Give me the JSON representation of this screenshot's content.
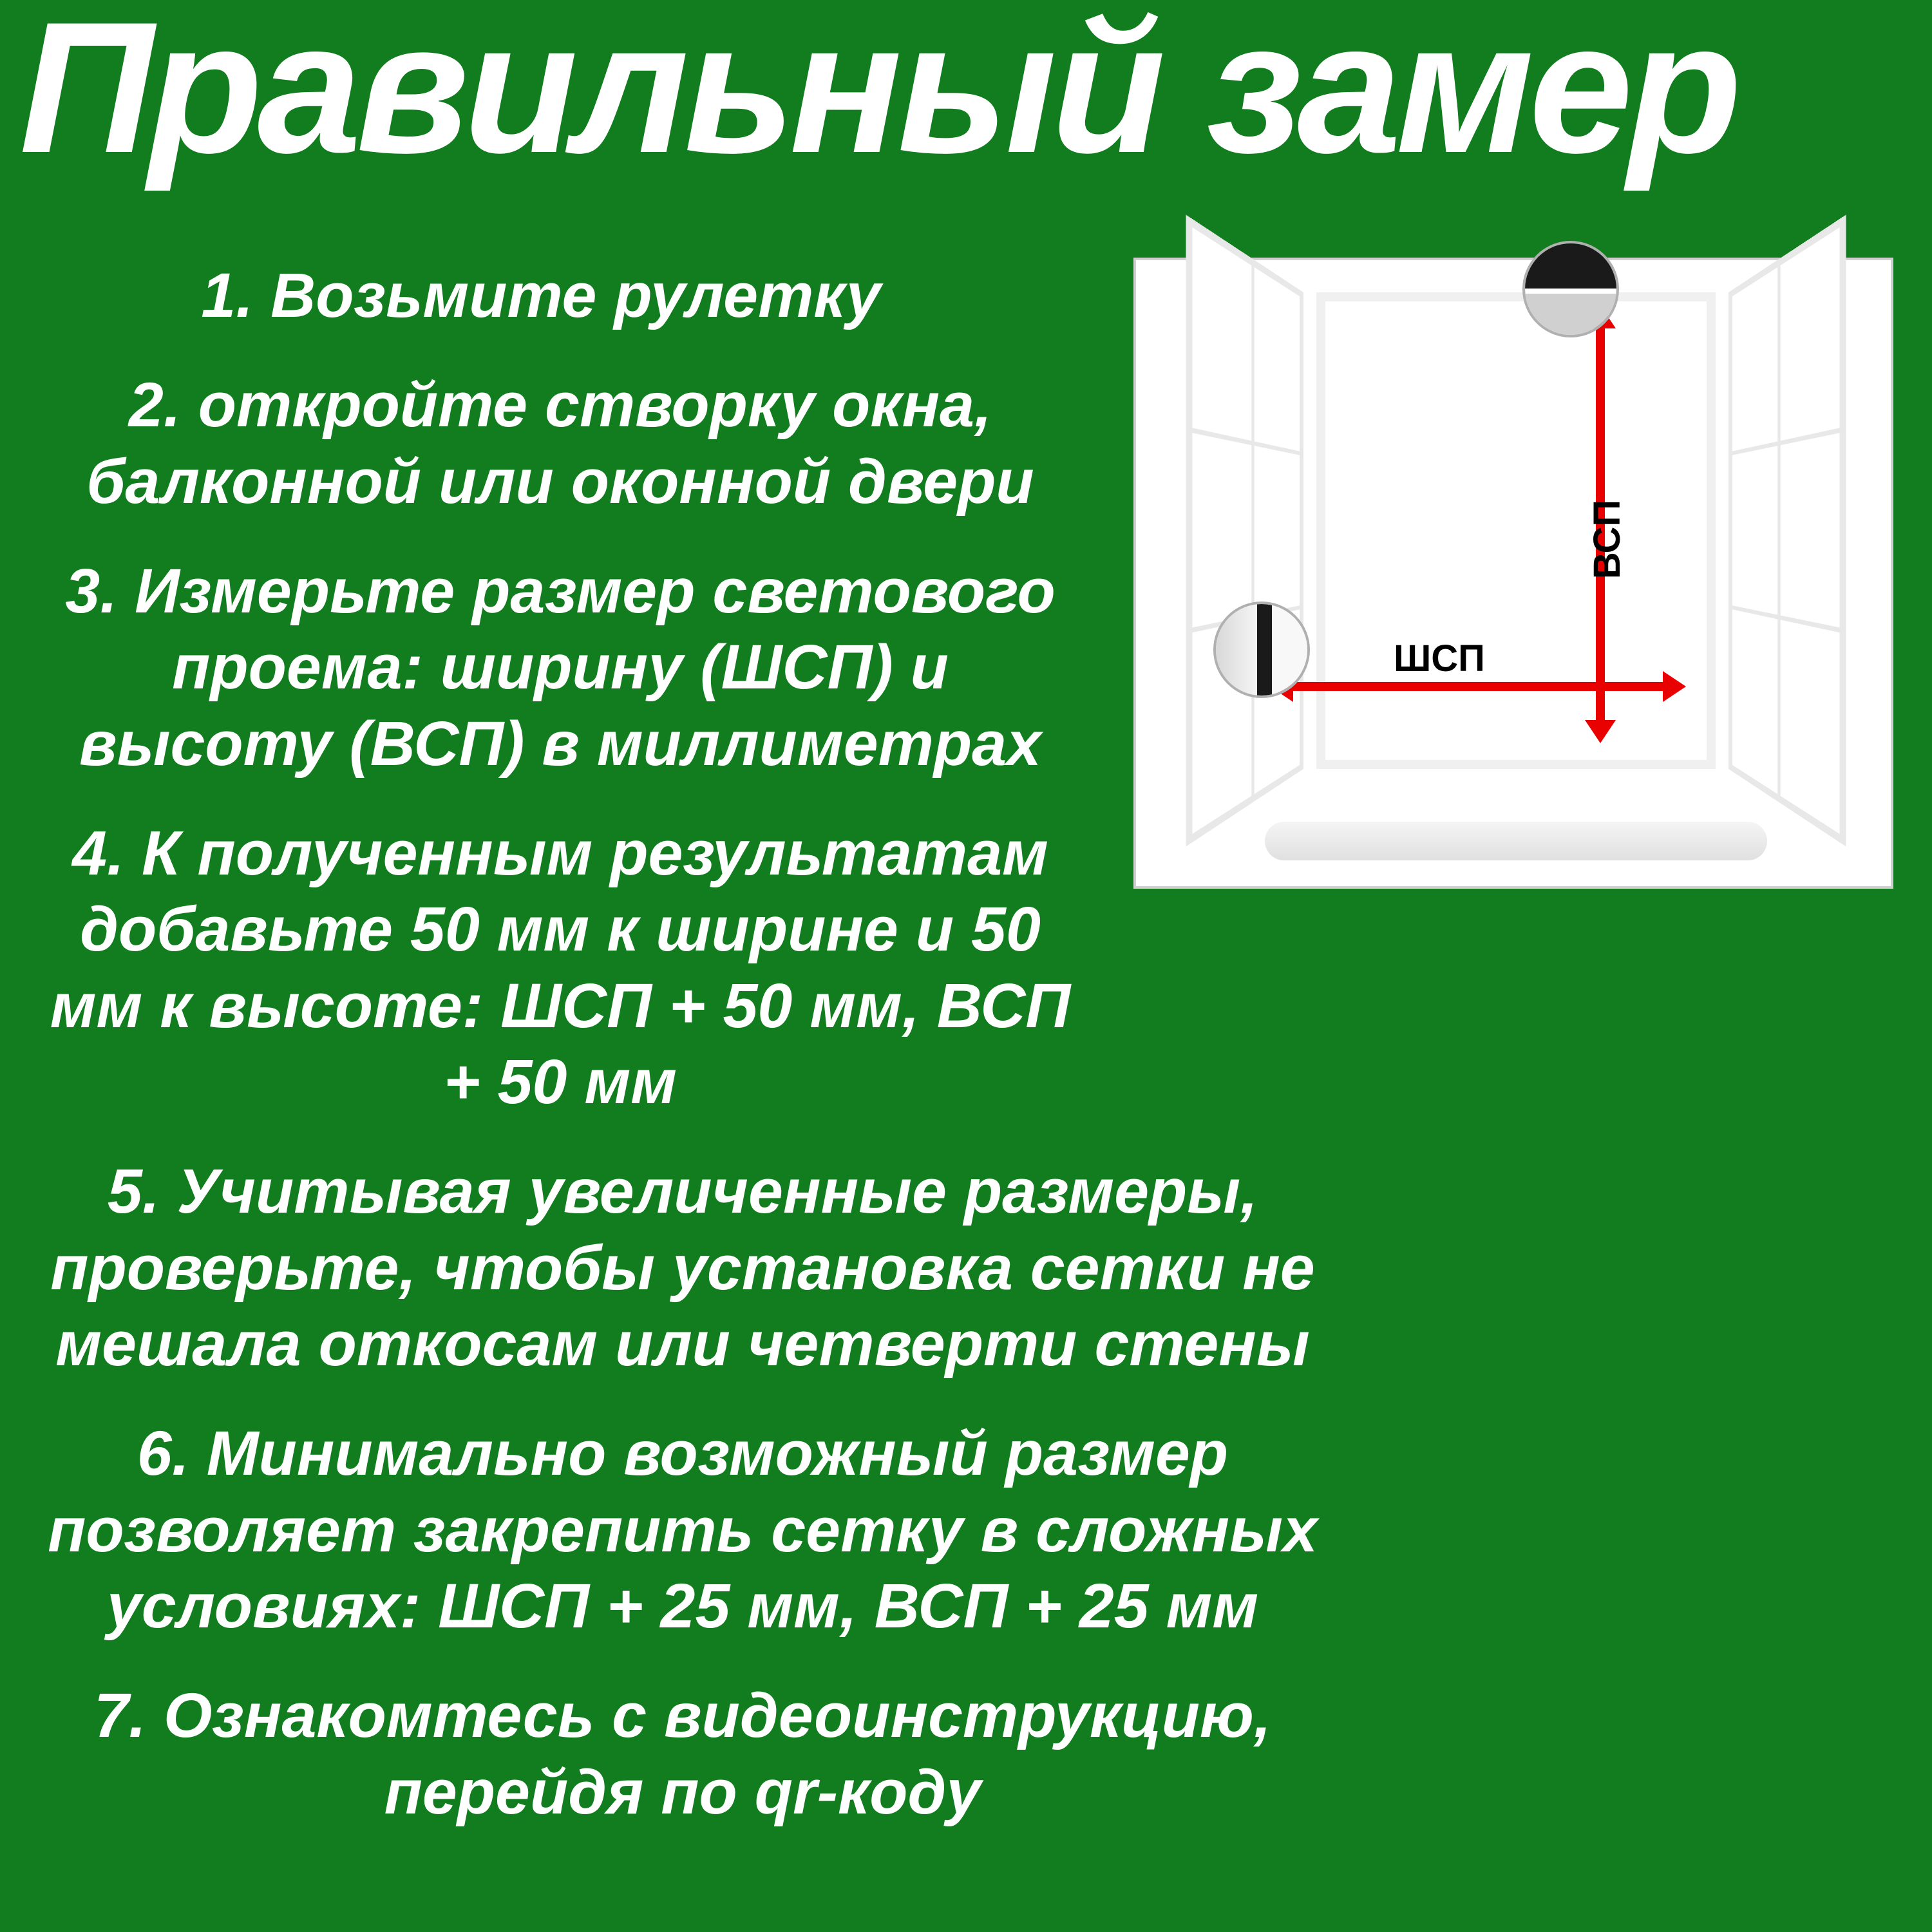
{
  "title": "Правильный замер",
  "steps": [
    "1. Возьмите рулетку",
    "2. откройте створку окна, балконной или оконной двери",
    "3. Измерьте размер светового проема: ширину  (ШСП) и высоту (ВСП) в миллиметрах",
    "4. К полученным результатам добавьте 50 мм к ширине и 50 мм к высоте: ШСП + 50 мм, ВСП + 50 мм",
    "5. Учитывая увеличенные размеры, проверьте, чтобы установка сетки не мешала откосам или четверти стены",
    "6. Минимально возможный размер позволяет закрепить сетку в сложных условиях: ШСП + 25 мм, ВСП + 25 мм",
    "7. Ознакомтесь с видеоинструкцию, перейдя по qr-коду"
  ],
  "diagram": {
    "width_label": "ШСП",
    "height_label": "ВСП",
    "arrow_color": "#e90000",
    "label_color": "#000000",
    "label_fontsize": 58,
    "background": "#ffffff",
    "frame_color": "#e8e8e8"
  },
  "colors": {
    "page_background": "#117d1e",
    "text": "#ffffff",
    "title": "#ffffff"
  },
  "typography": {
    "title_fontsize": 290,
    "title_weight": 900,
    "title_style": "italic",
    "step_fontsize": 97,
    "step_weight": 700,
    "step_style": "italic"
  }
}
